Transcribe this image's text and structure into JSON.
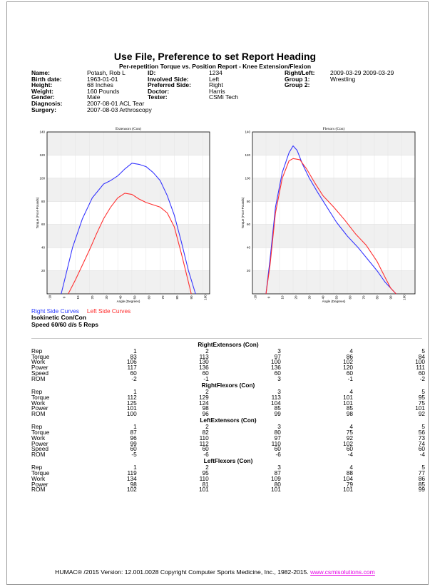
{
  "report": {
    "title": "Use File, Preference to set Report Heading",
    "subtitle": "Per-repetition Torque vs. Position Report - Knee Extension/Flexion"
  },
  "patient": {
    "col1": [
      {
        "label": "Name:",
        "value": "Potash, Rob L"
      },
      {
        "label": "Birth date:",
        "value": "1963-01-01"
      },
      {
        "label": "Height:",
        "value": "68 Inches"
      },
      {
        "label": "Weight:",
        "value": "160 Pounds"
      },
      {
        "label": "Gender:",
        "value": "Male"
      },
      {
        "label": "Diagnosis:",
        "value": "2007-08-01 ACL Tear"
      },
      {
        "label": "Surgery:",
        "value": "2007-08-03 Arthroscopy"
      }
    ],
    "col2": [
      {
        "label": "ID:",
        "value": "1234"
      },
      {
        "label": "Involved Side:",
        "value": "Left"
      },
      {
        "label": "Preferred Side:",
        "value": "Right"
      },
      {
        "label": "Doctor:",
        "value": "Harris"
      },
      {
        "label": "Tester:",
        "value": "CSMi Tech"
      }
    ],
    "col3": [
      {
        "label": "Right/Left:",
        "value": "2009-03-29 2009-03-29"
      },
      {
        "label": "Group 1:",
        "value": "Wrestling"
      },
      {
        "label": "Group 2:",
        "value": ""
      }
    ]
  },
  "chart_data": [
    {
      "type": "line",
      "title": "Extensors (Con)",
      "xlabel": "Angle (Degrees)",
      "ylabel": "Torque (Foot-Pounds)",
      "xlim": [
        -10,
        105
      ],
      "ylim": [
        0,
        140
      ],
      "xticks": [
        "-10",
        "0",
        "10",
        "20",
        "30",
        "40",
        "50",
        "60",
        "70",
        "80",
        "90",
        "100"
      ],
      "yticks": [
        "20",
        "40",
        "60",
        "80",
        "100",
        "120",
        "140"
      ],
      "grid": true,
      "series": [
        {
          "name": "Right Side Curves",
          "color": "#3535ff",
          "x": [
            0,
            3,
            8,
            15,
            22,
            30,
            35,
            40,
            45,
            50,
            55,
            60,
            65,
            70,
            75,
            80,
            85,
            90,
            95
          ],
          "y": [
            0,
            15,
            40,
            65,
            83,
            95,
            98,
            102,
            108,
            113,
            112,
            110,
            105,
            98,
            85,
            68,
            45,
            20,
            0
          ]
        },
        {
          "name": "Left Side Curves",
          "color": "#ff3030",
          "x": [
            5,
            10,
            15,
            20,
            25,
            30,
            35,
            40,
            45,
            50,
            55,
            60,
            65,
            70,
            75,
            80,
            85,
            90,
            92
          ],
          "y": [
            0,
            12,
            25,
            38,
            52,
            65,
            75,
            83,
            87,
            86,
            82,
            79,
            77,
            75,
            70,
            58,
            35,
            10,
            0
          ]
        }
      ]
    },
    {
      "type": "line",
      "title": "Flexors (Con)",
      "xlabel": "Angle (Degrees)",
      "ylabel": "Torque (Foot-Pounds)",
      "xlim": [
        -10,
        110
      ],
      "ylim": [
        0,
        140
      ],
      "xticks": [
        "-10",
        "0",
        "10",
        "20",
        "30",
        "40",
        "50",
        "60",
        "70",
        "80",
        "90",
        "100"
      ],
      "yticks": [
        "20",
        "40",
        "60",
        "80",
        "100",
        "120",
        "140"
      ],
      "grid": true,
      "series": [
        {
          "name": "Right Side Curves",
          "color": "#3535ff",
          "x": [
            0,
            3,
            7,
            12,
            17,
            20,
            23,
            27,
            32,
            38,
            45,
            52,
            60,
            68,
            75,
            82,
            88,
            92,
            96
          ],
          "y": [
            0,
            30,
            75,
            105,
            122,
            128,
            124,
            112,
            100,
            88,
            75,
            62,
            50,
            40,
            30,
            20,
            10,
            5,
            0
          ]
        },
        {
          "name": "Left Side Curves",
          "color": "#ff3030",
          "x": [
            0,
            3,
            7,
            12,
            17,
            20,
            25,
            30,
            36,
            42,
            50,
            58,
            66,
            74,
            82,
            88,
            92,
            96
          ],
          "y": [
            0,
            25,
            70,
            100,
            115,
            117,
            116,
            108,
            96,
            85,
            75,
            64,
            52,
            42,
            28,
            14,
            5,
            0
          ]
        }
      ]
    }
  ],
  "legend": {
    "right": "Right Side Curves",
    "left": "Left Side Curves"
  },
  "notes": [
    "Isokinetic Con/Con",
    "Speed 60/60 d/s 5 Reps"
  ],
  "tables": [
    {
      "title": "RightExtensors (Con)",
      "rows": [
        {
          "label": "Rep",
          "values": [
            "1",
            "2",
            "3",
            "4",
            "5"
          ]
        },
        {
          "label": "Torque",
          "values": [
            "83",
            "113",
            "97",
            "86",
            "84"
          ]
        },
        {
          "label": "Work",
          "values": [
            "106",
            "130",
            "100",
            "102",
            "100"
          ]
        },
        {
          "label": "Power",
          "values": [
            "117",
            "136",
            "136",
            "120",
            "111"
          ]
        },
        {
          "label": "Speed",
          "values": [
            "60",
            "60",
            "60",
            "60",
            "60"
          ]
        },
        {
          "label": "ROM",
          "values": [
            "-2",
            "-1",
            "3",
            "-1",
            "-2"
          ]
        }
      ]
    },
    {
      "title": "RightFlexors (Con)",
      "rows": [
        {
          "label": "Rep",
          "values": [
            "1",
            "2",
            "3",
            "4",
            "5"
          ]
        },
        {
          "label": "Torque",
          "values": [
            "112",
            "129",
            "113",
            "101",
            "95"
          ]
        },
        {
          "label": "Work",
          "values": [
            "125",
            "124",
            "104",
            "101",
            "75"
          ]
        },
        {
          "label": "Power",
          "values": [
            "101",
            "98",
            "85",
            "85",
            "101"
          ]
        },
        {
          "label": "ROM",
          "values": [
            "100",
            "96",
            "99",
            "98",
            "92"
          ]
        }
      ]
    },
    {
      "title": "LeftExtensors (Con)",
      "rows": [
        {
          "label": "Rep",
          "values": [
            "1",
            "2",
            "3",
            "4",
            "5"
          ]
        },
        {
          "label": "Torque",
          "values": [
            "87",
            "82",
            "80",
            "75",
            "56"
          ]
        },
        {
          "label": "Work",
          "values": [
            "96",
            "110",
            "97",
            "92",
            "73"
          ]
        },
        {
          "label": "Power",
          "values": [
            "99",
            "112",
            "110",
            "102",
            "74"
          ]
        },
        {
          "label": "Speed",
          "values": [
            "60",
            "60",
            "60",
            "60",
            "60"
          ]
        },
        {
          "label": "ROM",
          "values": [
            "-5",
            "-6",
            "-6",
            "-4",
            "-4"
          ]
        }
      ]
    },
    {
      "title": "LeftFlexors (Con)",
      "rows": [
        {
          "label": "Rep",
          "values": [
            "1",
            "2",
            "3",
            "4",
            "5"
          ]
        },
        {
          "label": "Torque",
          "values": [
            "119",
            "95",
            "87",
            "88",
            "77"
          ]
        },
        {
          "label": "Work",
          "values": [
            "134",
            "110",
            "109",
            "104",
            "86"
          ]
        },
        {
          "label": "Power",
          "values": [
            "98",
            "81",
            "80",
            "79",
            "85"
          ]
        },
        {
          "label": "ROM",
          "values": [
            "102",
            "101",
            "101",
            "101",
            "99"
          ]
        }
      ]
    }
  ],
  "footer": {
    "text": "HUMAC® /2015 Version: 12.001.0028 Copyright Computer Sports Medicine, Inc., 1982-2015.",
    "link": "www.csmisolutions.com"
  }
}
